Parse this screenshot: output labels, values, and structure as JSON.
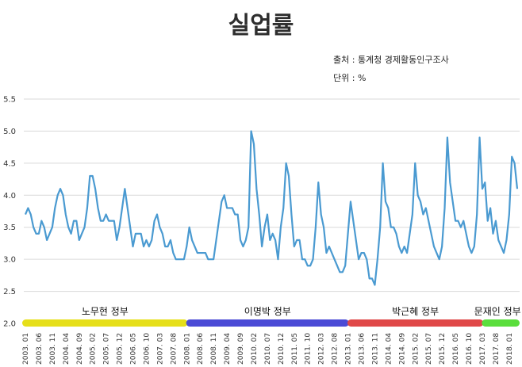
{
  "chart_data": {
    "type": "line",
    "title": "실업률",
    "source": "출처 : 통계청 경제활동인구조사",
    "unit": "단위 : %",
    "ylim": [
      2.0,
      5.5
    ],
    "yticks": [
      "2.0",
      "2.5",
      "3.0",
      "3.5",
      "4.0",
      "4.5",
      "5.0",
      "5.5"
    ],
    "grid": true,
    "x_labels": [
      "2003. 01",
      "2003. 06",
      "2003. 11",
      "2004. 04",
      "2004. 09",
      "2005. 02",
      "2005. 07",
      "2005. 12",
      "2006. 05",
      "2006. 10",
      "2007. 03",
      "2007. 08",
      "2008. 01",
      "2008. 06",
      "2008. 11",
      "2009. 04",
      "2009. 09",
      "2010. 02",
      "2010. 07",
      "2010. 12",
      "2011. 05",
      "2011. 10",
      "2012. 03",
      "2012. 08",
      "2013. 01",
      "2013. 06",
      "2013. 11",
      "2014. 04",
      "2014. 09",
      "2015. 02",
      "2015. 07",
      "2015. 12",
      "2016. 05",
      "2016. 10",
      "2017. 03",
      "2017. 08",
      "2018. 01"
    ],
    "series": [
      {
        "name": "실업률",
        "color": "#4a9ad1",
        "start": "2003-01",
        "values": [
          3.7,
          3.8,
          3.7,
          3.5,
          3.4,
          3.4,
          3.6,
          3.5,
          3.3,
          3.4,
          3.5,
          3.8,
          4.0,
          4.1,
          4.0,
          3.7,
          3.5,
          3.4,
          3.6,
          3.6,
          3.3,
          3.4,
          3.5,
          3.8,
          4.3,
          4.3,
          4.1,
          3.8,
          3.6,
          3.6,
          3.7,
          3.6,
          3.6,
          3.6,
          3.3,
          3.5,
          3.8,
          4.1,
          3.8,
          3.5,
          3.2,
          3.4,
          3.4,
          3.4,
          3.2,
          3.3,
          3.2,
          3.3,
          3.6,
          3.7,
          3.5,
          3.4,
          3.2,
          3.2,
          3.3,
          3.1,
          3.0,
          3.0,
          3.0,
          3.0,
          3.2,
          3.5,
          3.3,
          3.2,
          3.1,
          3.1,
          3.1,
          3.1,
          3.0,
          3.0,
          3.0,
          3.3,
          3.6,
          3.9,
          4.0,
          3.8,
          3.8,
          3.8,
          3.7,
          3.7,
          3.3,
          3.2,
          3.3,
          3.5,
          5.0,
          4.8,
          4.1,
          3.7,
          3.2,
          3.5,
          3.7,
          3.3,
          3.4,
          3.3,
          3.0,
          3.5,
          3.8,
          4.5,
          4.3,
          3.7,
          3.2,
          3.3,
          3.3,
          3.0,
          3.0,
          2.9,
          2.9,
          3.0,
          3.5,
          4.2,
          3.7,
          3.5,
          3.1,
          3.2,
          3.1,
          3.0,
          2.9,
          2.8,
          2.8,
          2.9,
          3.4,
          3.9,
          3.6,
          3.3,
          3.0,
          3.1,
          3.1,
          3.0,
          2.7,
          2.7,
          2.6,
          3.0,
          3.5,
          4.5,
          3.9,
          3.8,
          3.5,
          3.5,
          3.4,
          3.2,
          3.1,
          3.2,
          3.1,
          3.4,
          3.7,
          4.5,
          4.0,
          3.9,
          3.7,
          3.8,
          3.6,
          3.4,
          3.2,
          3.1,
          3.0,
          3.2,
          3.8,
          4.9,
          4.2,
          3.9,
          3.6,
          3.6,
          3.5,
          3.6,
          3.4,
          3.2,
          3.1,
          3.2,
          3.7,
          4.9,
          4.1,
          4.2,
          3.6,
          3.8,
          3.4,
          3.6,
          3.3,
          3.2,
          3.1,
          3.3,
          3.7,
          4.6,
          4.5,
          4.1
        ]
      }
    ],
    "eras": [
      {
        "label": "노무현 정부",
        "color": "#e6df1a",
        "start": 0,
        "end": 61
      },
      {
        "label": "이명박 정부",
        "color": "#4b4bd6",
        "start": 61,
        "end": 121
      },
      {
        "label": "박근혜 정부",
        "color": "#e04848",
        "start": 121,
        "end": 171
      },
      {
        "label": "문재인 정부",
        "color": "#5ade3c",
        "start": 171,
        "end": 185
      }
    ]
  }
}
